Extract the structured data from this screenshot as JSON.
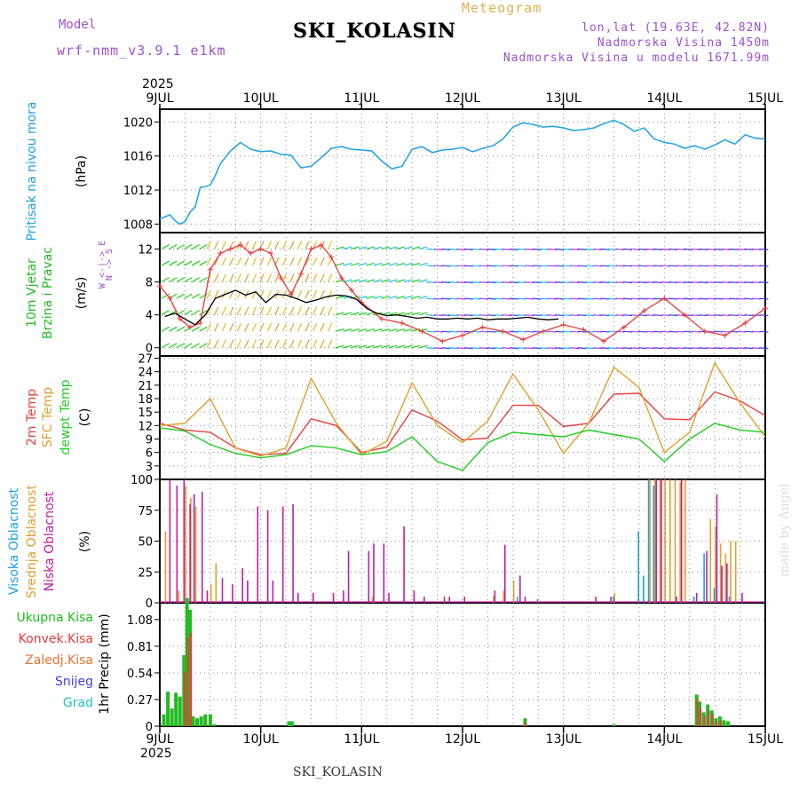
{
  "header": {
    "model_label": "Model",
    "model_name": "wrf-nmm_v3.9.1 e1km",
    "title": "SKI_KOLASIN",
    "meteogram": "Meteogram",
    "lonlat": "lon,lat (19.63E, 42.82N)",
    "elevation": "Nadmorska Visina 1450m",
    "elevation_model": "Nadmorska Visina u modelu 1671.99m",
    "year_top": "2025",
    "year_bottom": "2025",
    "footer_station": "SKI_KOLASIN",
    "watermark": "made by Angel"
  },
  "colors": {
    "pressure": "#1ea0e6",
    "wind_speed": "#e83a3a",
    "wind_avg": "#000000",
    "t2m": "#e84040",
    "sfc": "#e0a030",
    "dewpt": "#22cc22",
    "cloud_high": "#1ea0e6",
    "cloud_mid": "#e0a030",
    "cloud_low": "#c0209c",
    "precip_total": "#22bb22",
    "precip_conv": "#e83a3a",
    "precip_frozen": "#e87030",
    "snow": "#4040ee",
    "graupel": "#20c0c0",
    "header_purple": "#a050d0",
    "header_orange": "#e0b050"
  },
  "chart_data": [
    {
      "type": "line",
      "name": "pressure",
      "title": "Pritisak na nivou mora",
      "unit": "(hPa)",
      "x_labels": [
        "9JUL",
        "10JUL",
        "11JUL",
        "12JUL",
        "13JUL",
        "14JUL",
        "15JUL"
      ],
      "ylim": [
        1007,
        1021.5
      ],
      "yticks": [
        1008,
        1012,
        1016,
        1020
      ],
      "grid": true,
      "x": [
        0,
        0.1,
        0.15,
        0.2,
        0.25,
        0.3,
        0.35,
        0.4,
        0.45,
        0.5,
        0.55,
        0.6,
        0.7,
        0.8,
        0.9,
        1.0,
        1.1,
        1.2,
        1.3,
        1.4,
        1.5,
        1.6,
        1.7,
        1.8,
        1.9,
        2.0,
        2.1,
        2.2,
        2.3,
        2.4,
        2.5,
        2.6,
        2.7,
        2.8,
        2.9,
        3.0,
        3.1,
        3.2,
        3.3,
        3.4,
        3.5,
        3.6,
        3.7,
        3.8,
        3.9,
        4.0,
        4.1,
        4.2,
        4.3,
        4.4,
        4.5,
        4.6,
        4.7,
        4.8,
        4.9,
        5.0,
        5.1,
        5.2,
        5.3,
        5.4,
        5.5,
        5.6,
        5.7,
        5.8,
        5.9,
        6.0
      ],
      "values": [
        1008.6,
        1009.1,
        1008.4,
        1008.0,
        1008.3,
        1009.4,
        1010.0,
        1012.3,
        1012.4,
        1012.6,
        1013.7,
        1015.1,
        1016.6,
        1017.6,
        1016.8,
        1016.5,
        1016.6,
        1016.2,
        1016.1,
        1014.6,
        1014.8,
        1015.8,
        1016.9,
        1017.1,
        1016.8,
        1016.7,
        1016.6,
        1015.4,
        1014.5,
        1014.8,
        1016.8,
        1017.1,
        1016.4,
        1016.7,
        1016.8,
        1017.0,
        1016.5,
        1016.9,
        1017.2,
        1018.0,
        1019.4,
        1019.9,
        1019.7,
        1019.4,
        1019.5,
        1019.3,
        1019.0,
        1019.1,
        1019.3,
        1019.8,
        1020.2,
        1019.7,
        1018.9,
        1019.3,
        1018.0,
        1017.6,
        1017.4,
        1016.9,
        1017.2,
        1016.8,
        1017.3,
        1017.9,
        1017.4,
        1018.5,
        1018.1,
        1018.0
      ]
    },
    {
      "type": "line",
      "name": "wind",
      "title": "10m Vjetar",
      "subtitle": "Brzina i Pravac",
      "unit": "(m/s)",
      "compass": "W <-|-> E",
      "compass_ns": "N -> S",
      "ylim": [
        -1,
        14
      ],
      "yticks": [
        0,
        4,
        8,
        12
      ],
      "grid": true,
      "series": [
        {
          "name": "speed",
          "x": [
            0,
            0.1,
            0.2,
            0.3,
            0.4,
            0.5,
            0.6,
            0.7,
            0.8,
            0.9,
            1.0,
            1.1,
            1.2,
            1.3,
            1.4,
            1.5,
            1.6,
            1.7,
            1.8,
            1.9,
            2.0,
            2.2,
            2.4,
            2.6,
            2.8,
            3.0,
            3.2,
            3.4,
            3.6,
            3.8,
            4.0,
            4.2,
            4.4,
            4.6,
            4.8,
            5.0,
            5.2,
            5.4,
            5.6,
            5.8,
            6.0
          ],
          "values": [
            7.5,
            6.0,
            3.5,
            2.5,
            3.0,
            9.5,
            11.5,
            12.0,
            12.5,
            11.5,
            12.0,
            11.5,
            8.5,
            6.5,
            9.0,
            12.0,
            12.5,
            11.0,
            8.5,
            7.0,
            5.5,
            3.5,
            3.0,
            2.0,
            0.8,
            1.5,
            2.5,
            2.0,
            1.0,
            2.0,
            2.8,
            2.2,
            0.8,
            2.5,
            4.5,
            6.0,
            4.0,
            2.0,
            1.5,
            3.0,
            4.8
          ]
        },
        {
          "name": "average",
          "x": [
            0.05,
            0.15,
            0.25,
            0.35,
            0.45,
            0.55,
            0.65,
            0.75,
            0.85,
            0.95,
            1.05,
            1.15,
            1.25,
            1.35,
            1.45,
            1.55,
            1.65,
            1.75,
            1.85,
            1.95,
            2.05,
            2.15,
            2.25,
            2.35,
            2.45,
            2.55,
            2.65,
            2.75,
            2.85,
            2.95,
            3.05,
            3.15,
            3.25,
            3.35,
            3.45,
            3.55,
            3.65,
            3.75,
            3.85,
            3.95
          ],
          "values": [
            3.8,
            4.2,
            3.5,
            2.8,
            4.0,
            6.0,
            6.5,
            7.0,
            6.4,
            6.8,
            5.5,
            6.5,
            6.4,
            6.0,
            5.5,
            5.8,
            6.2,
            6.4,
            6.3,
            5.9,
            4.8,
            4.2,
            3.9,
            4.0,
            3.8,
            3.6,
            3.7,
            3.5,
            3.5,
            3.6,
            3.5,
            3.6,
            3.4,
            3.5,
            3.5,
            3.6,
            3.7,
            3.5,
            3.4,
            3.5
          ]
        }
      ]
    },
    {
      "type": "line",
      "name": "temperature",
      "labels": [
        "2m Temp",
        "SFC Temp",
        "dewpt Temp"
      ],
      "unit": "(C)",
      "ylim": [
        0,
        27.5
      ],
      "yticks": [
        0,
        3,
        6,
        9,
        12,
        15,
        18,
        21,
        24,
        27
      ],
      "grid": true,
      "x": [
        0,
        0.25,
        0.5,
        0.75,
        1.0,
        1.25,
        1.5,
        1.75,
        2.0,
        2.25,
        2.5,
        2.75,
        3.0,
        3.25,
        3.5,
        3.75,
        4.0,
        4.25,
        4.5,
        4.75,
        5.0,
        5.25,
        5.5,
        5.75,
        6.0
      ],
      "series": [
        {
          "name": "2m Temp",
          "values": [
            12.5,
            11.0,
            10.5,
            7.0,
            5.5,
            5.8,
            13.5,
            12.0,
            6.0,
            7.2,
            15.5,
            13.0,
            8.8,
            9.2,
            16.5,
            16.5,
            11.8,
            12.5,
            19.0,
            19.2,
            13.5,
            13.3,
            19.5,
            17.5,
            14.2
          ]
        },
        {
          "name": "SFC Temp",
          "values": [
            12.0,
            12.5,
            18.0,
            7.0,
            5.2,
            7.0,
            22.5,
            12.5,
            5.5,
            8.5,
            21.5,
            12.0,
            8.2,
            13.0,
            23.5,
            15.5,
            5.8,
            12.5,
            25.0,
            20.5,
            6.0,
            10.5,
            26.0,
            17.0,
            9.5
          ]
        },
        {
          "name": "dewpt Temp",
          "values": [
            11.5,
            10.8,
            7.8,
            5.8,
            4.8,
            5.5,
            7.5,
            7.0,
            5.5,
            6.2,
            9.5,
            4.0,
            2.0,
            8.2,
            10.5,
            10.0,
            9.5,
            11.0,
            10.0,
            9.0,
            4.0,
            9.0,
            12.5,
            11.0,
            10.5
          ]
        }
      ]
    },
    {
      "type": "bar",
      "name": "cloud",
      "labels": [
        "Visoka Oblacnost",
        "Srednja Oblacnost",
        "Niska Oblacnost"
      ],
      "unit": "(%)",
      "ylim": [
        0,
        100
      ],
      "yticks": [
        0,
        25,
        50,
        75,
        100
      ],
      "grid": true,
      "series": [
        {
          "name": "Visoka Oblacnost",
          "x": [
            3.55,
            3.75,
            4.5,
            4.75,
            4.8,
            4.85,
            4.9,
            5.3,
            5.4,
            5.5,
            5.65
          ],
          "values": [
            5,
            3,
            5,
            58,
            22,
            100,
            95,
            5,
            40,
            12,
            5
          ]
        },
        {
          "name": "Srednja Oblacnost",
          "x": [
            0.05,
            0.18,
            0.25,
            0.3,
            0.35,
            0.5,
            0.55,
            2.1,
            3.3,
            3.4,
            3.5,
            4.5,
            4.85,
            4.9,
            4.95,
            5.0,
            5.05,
            5.1,
            5.15,
            5.2,
            5.45,
            5.5,
            5.55,
            5.6,
            5.65,
            5.7
          ],
          "values": [
            58,
            10,
            95,
            85,
            78,
            15,
            32,
            5,
            6,
            10,
            18,
            8,
            100,
            100,
            100,
            100,
            100,
            100,
            98,
            100,
            68,
            62,
            48,
            40,
            50,
            50
          ]
        },
        {
          "name": "Niska Oblacnost",
          "x": [
            0.08,
            0.15,
            0.22,
            0.28,
            0.32,
            0.4,
            0.45,
            0.6,
            0.7,
            0.8,
            0.85,
            0.95,
            1.05,
            1.1,
            1.2,
            1.3,
            1.35,
            1.5,
            1.7,
            1.8,
            1.85,
            2.05,
            2.1,
            2.2,
            2.25,
            2.4,
            2.5,
            2.6,
            2.8,
            2.85,
            3.0,
            3.3,
            3.4,
            3.55,
            3.6,
            4.3,
            4.45,
            4.9,
            4.95,
            5.1,
            5.15,
            5.3,
            5.4,
            5.5,
            5.55,
            5.6,
            5.75
          ],
          "values": [
            100,
            95,
            100,
            80,
            88,
            90,
            10,
            20,
            15,
            28,
            18,
            78,
            75,
            18,
            78,
            80,
            8,
            8,
            8,
            10,
            42,
            42,
            48,
            48,
            8,
            62,
            10,
            5,
            5,
            5,
            5,
            10,
            47,
            22,
            5,
            5,
            5,
            100,
            100,
            5,
            100,
            8,
            42,
            88,
            30,
            32,
            8
          ]
        }
      ]
    },
    {
      "type": "bar",
      "name": "precip",
      "labels": [
        "Ukupna Kisa",
        "Konvek.Kisa",
        "Zaledj.Kisa",
        "Snijeg",
        "Grad"
      ],
      "unit": "1hr Precip (mm)",
      "ylim": [
        0,
        1.25
      ],
      "yticks": [
        0,
        0.27,
        0.54,
        0.81,
        1.08
      ],
      "ytick_labels": [
        "0",
        "0.27",
        "0.54",
        "0.81",
        "1.08"
      ],
      "x_labels": [
        "9JUL",
        "10JUL",
        "11JUL",
        "12JUL",
        "13JUL",
        "14JUL",
        "15JUL"
      ],
      "grid": true,
      "series": [
        {
          "name": "Ukupna Kisa",
          "x": [
            0.04,
            0.08,
            0.12,
            0.16,
            0.2,
            0.24,
            0.27,
            0.3,
            0.33,
            0.37,
            0.41,
            0.45,
            0.5,
            0.54,
            1.28,
            1.31,
            3.62,
            4.5,
            5.32,
            5.35,
            5.39,
            5.43,
            5.47,
            5.51,
            5.55,
            5.59,
            5.63
          ],
          "values": [
            0.12,
            0.35,
            0.18,
            0.34,
            0.3,
            0.72,
            1.3,
            1.18,
            0.1,
            0.08,
            0.1,
            0.12,
            0.12,
            0.02,
            0.05,
            0.05,
            0.08,
            0.02,
            0.32,
            0.25,
            0.14,
            0.22,
            0.16,
            0.08,
            0.1,
            0.06,
            0.05
          ]
        },
        {
          "name": "Konvek.Kisa",
          "x": [
            0.24,
            0.27,
            0.3,
            3.62,
            5.32,
            5.35,
            5.39,
            5.43,
            5.47,
            5.51,
            5.55
          ],
          "values": [
            0.55,
            0.9,
            0.95,
            0.04,
            0.28,
            0.18,
            0.1,
            0.15,
            0.12,
            0.05,
            0.06
          ]
        }
      ]
    }
  ]
}
